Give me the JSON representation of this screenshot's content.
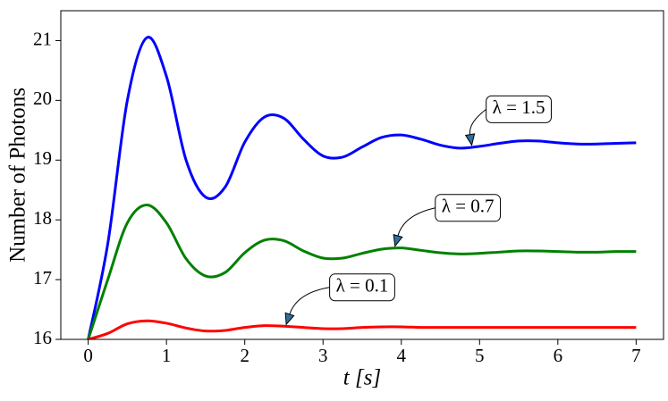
{
  "chart_data": {
    "type": "line",
    "xlabel": "t [s]",
    "ylabel": "Number of Photons",
    "x": [
      0,
      0.25,
      0.5,
      0.75,
      1.0,
      1.25,
      1.5,
      1.75,
      2.0,
      2.25,
      2.5,
      2.75,
      3.0,
      3.25,
      3.5,
      3.75,
      4.0,
      4.25,
      4.5,
      4.75,
      5.0,
      5.25,
      5.5,
      5.75,
      6.0,
      6.25,
      6.5,
      6.75,
      7.0
    ],
    "series": [
      {
        "name": "λ = 1.5",
        "color": "#0000ff",
        "values": [
          16,
          17.6,
          20.0,
          21.05,
          20.4,
          19.0,
          18.38,
          18.55,
          19.3,
          19.72,
          19.7,
          19.35,
          19.07,
          19.05,
          19.22,
          19.38,
          19.42,
          19.35,
          19.25,
          19.2,
          19.23,
          19.28,
          19.32,
          19.32,
          19.29,
          19.27,
          19.27,
          19.28,
          19.29
        ]
      },
      {
        "name": "λ = 0.7",
        "color": "#008000",
        "values": [
          16,
          17.0,
          17.95,
          18.25,
          17.95,
          17.35,
          17.06,
          17.12,
          17.45,
          17.66,
          17.65,
          17.48,
          17.36,
          17.36,
          17.44,
          17.51,
          17.53,
          17.49,
          17.45,
          17.43,
          17.44,
          17.46,
          17.48,
          17.48,
          17.47,
          17.46,
          17.46,
          17.47,
          17.47
        ]
      },
      {
        "name": "λ = 0.1",
        "color": "#ff0000",
        "values": [
          16,
          16.1,
          16.26,
          16.31,
          16.27,
          16.19,
          16.14,
          16.15,
          16.2,
          16.23,
          16.22,
          16.2,
          16.18,
          16.18,
          16.2,
          16.21,
          16.21,
          16.2,
          16.2,
          16.2,
          16.2,
          16.2,
          16.2,
          16.2,
          16.2,
          16.2,
          16.2,
          16.2,
          16.2
        ]
      }
    ],
    "annotations": [
      {
        "text": "λ = 1.5",
        "xy": [
          4.9,
          19.25
        ],
        "xytext": [
          5.5,
          19.85
        ]
      },
      {
        "text": "λ = 0.7",
        "xy": [
          3.92,
          17.56
        ],
        "xytext": [
          4.85,
          18.2
        ]
      },
      {
        "text": "λ = 0.1",
        "xy": [
          2.53,
          16.25
        ],
        "xytext": [
          3.5,
          16.87
        ]
      }
    ],
    "xlim": [
      -0.35,
      7.35
    ],
    "ylim": [
      16,
      21.5
    ],
    "xticks": [
      0,
      1,
      2,
      3,
      4,
      5,
      6,
      7
    ],
    "yticks": [
      16,
      17,
      18,
      19,
      20,
      21
    ]
  }
}
